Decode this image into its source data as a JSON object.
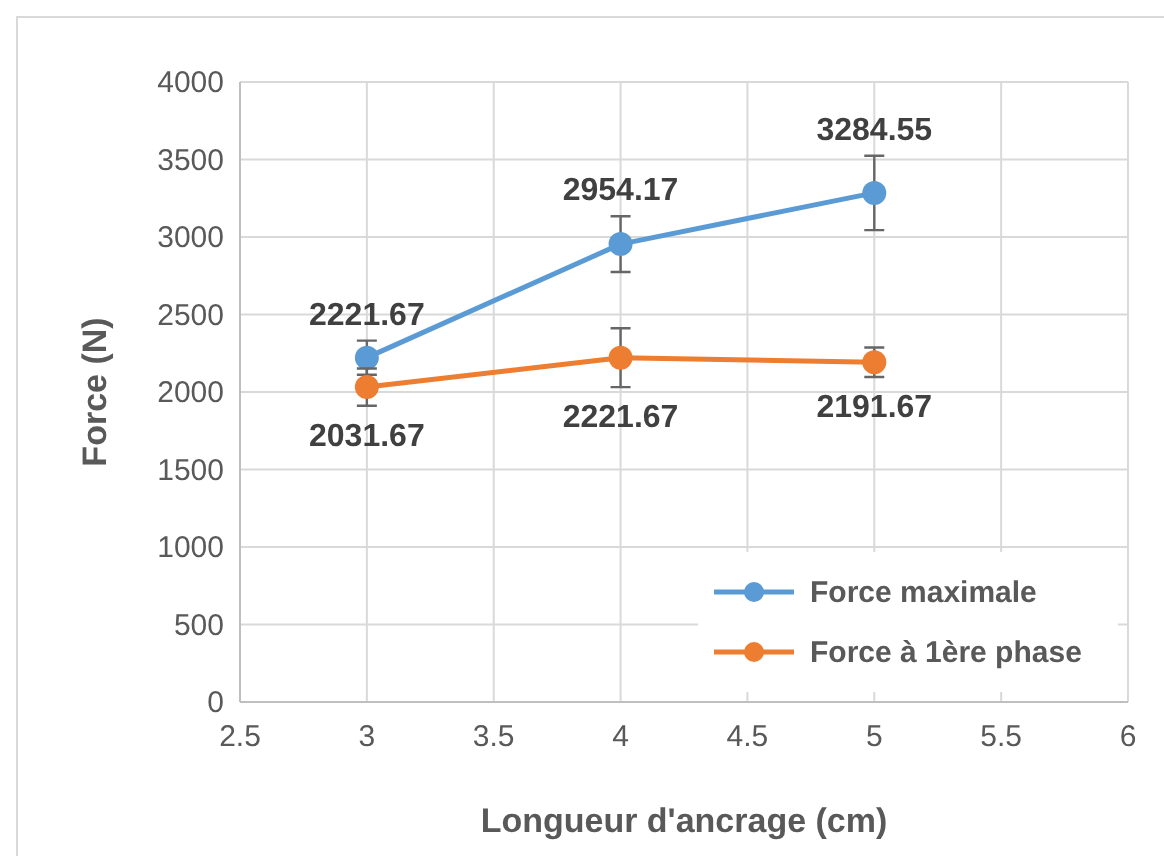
{
  "chart_data": {
    "type": "line",
    "xlabel": "Longueur d'ancrage (cm)",
    "ylabel": "Force  (N)",
    "x": [
      3,
      4,
      5
    ],
    "series": [
      {
        "name": "Force maximale",
        "color": "#5b9bd5",
        "values": [
          2221.67,
          2954.17,
          3284.55
        ],
        "errors": [
          110,
          180,
          240
        ]
      },
      {
        "name": "Force à 1ère phase",
        "color": "#ed7d31",
        "values": [
          2031.67,
          2221.67,
          2191.67
        ],
        "errors": [
          120,
          190,
          95
        ]
      }
    ],
    "xlim": [
      2.5,
      6
    ],
    "xticks": [
      2.5,
      3,
      3.5,
      4,
      4.5,
      5,
      5.5,
      6
    ],
    "ylim": [
      0,
      4000
    ],
    "yticks": [
      0,
      500,
      1000,
      1500,
      2000,
      2500,
      3000,
      3500,
      4000
    ],
    "grid": true,
    "legend": "bottom right",
    "marker": "circle",
    "line_style": "solid",
    "data_labels": true
  }
}
